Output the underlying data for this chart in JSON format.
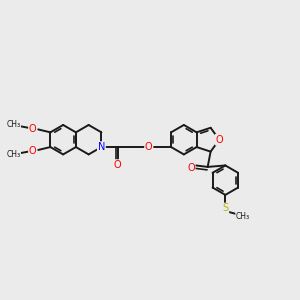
{
  "bg_color": "#ebebeb",
  "bond_color": "#1a1a1a",
  "N_color": "#0000ff",
  "O_color": "#ff0000",
  "S_color": "#b8b800",
  "bond_width": 1.4,
  "font_size_atom": 7.0,
  "r_hex": 0.5,
  "fig_width": 3.0,
  "fig_height": 3.0,
  "xlim": [
    0,
    10
  ],
  "ylim": [
    0,
    10
  ]
}
